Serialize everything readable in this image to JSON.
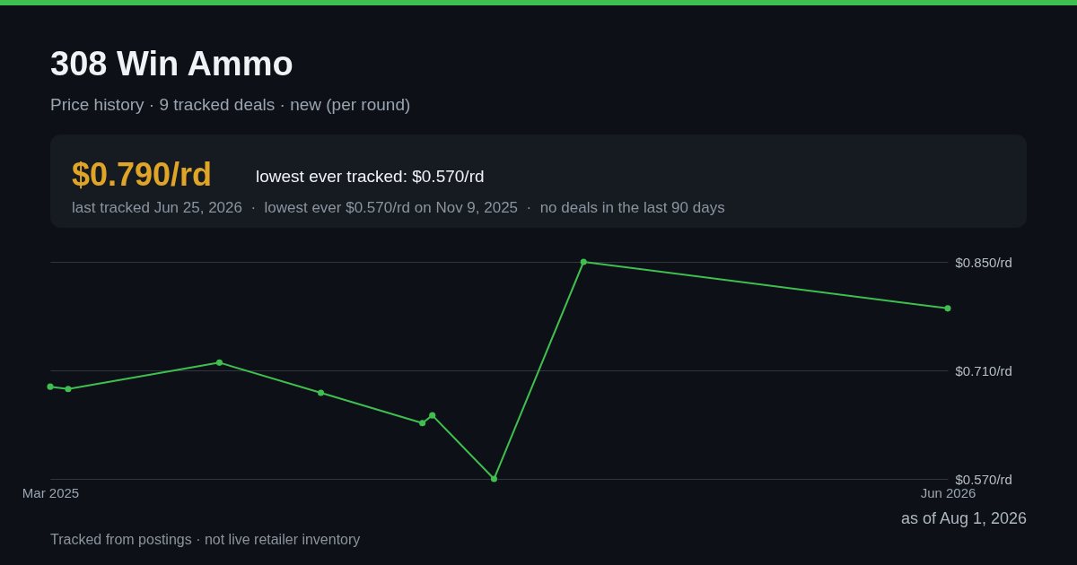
{
  "chart_data": {
    "type": "line",
    "title": "308 Win Ammo",
    "subtitle": "Price history · 9 tracked deals · new (per round)",
    "x": [
      "2025-03-31",
      "2025-04-09",
      "2025-06-24",
      "2025-08-14",
      "2025-10-04",
      "2025-10-09",
      "2025-11-09",
      "2025-12-24",
      "2026-06-25"
    ],
    "series": [
      {
        "color": "#3fbf4f",
        "values": [
          0.689,
          0.686,
          0.72,
          0.681,
          0.642,
          0.652,
          0.57,
          0.85,
          0.79
        ]
      }
    ],
    "xlim": [
      "2025-03-31",
      "2026-06-25"
    ],
    "xticks": [
      {
        "value": "2025-03-31",
        "label": "Mar 2025"
      },
      {
        "value": "2026-06-25",
        "label": "Jun 2026"
      }
    ],
    "ylim": [
      0.57,
      0.85
    ],
    "yticks": [
      {
        "value": 0.57,
        "label": "$0.570/rd"
      },
      {
        "value": 0.71,
        "label": "$0.710/rd"
      },
      {
        "value": 0.85,
        "label": "$0.850/rd"
      }
    ],
    "grid": "y",
    "marker": "circle",
    "line_style": "solid",
    "annotations": [
      "$0.790/rd",
      "lowest ever tracked: $0.570/rd",
      "last tracked Jun 25, 2026  ·  lowest ever $0.570/rd on Nov 9, 2025  ·  no deals in the last 90 days",
      "Tracked from postings · not live retailer inventory",
      "as of Aug 1, 2026"
    ]
  }
}
